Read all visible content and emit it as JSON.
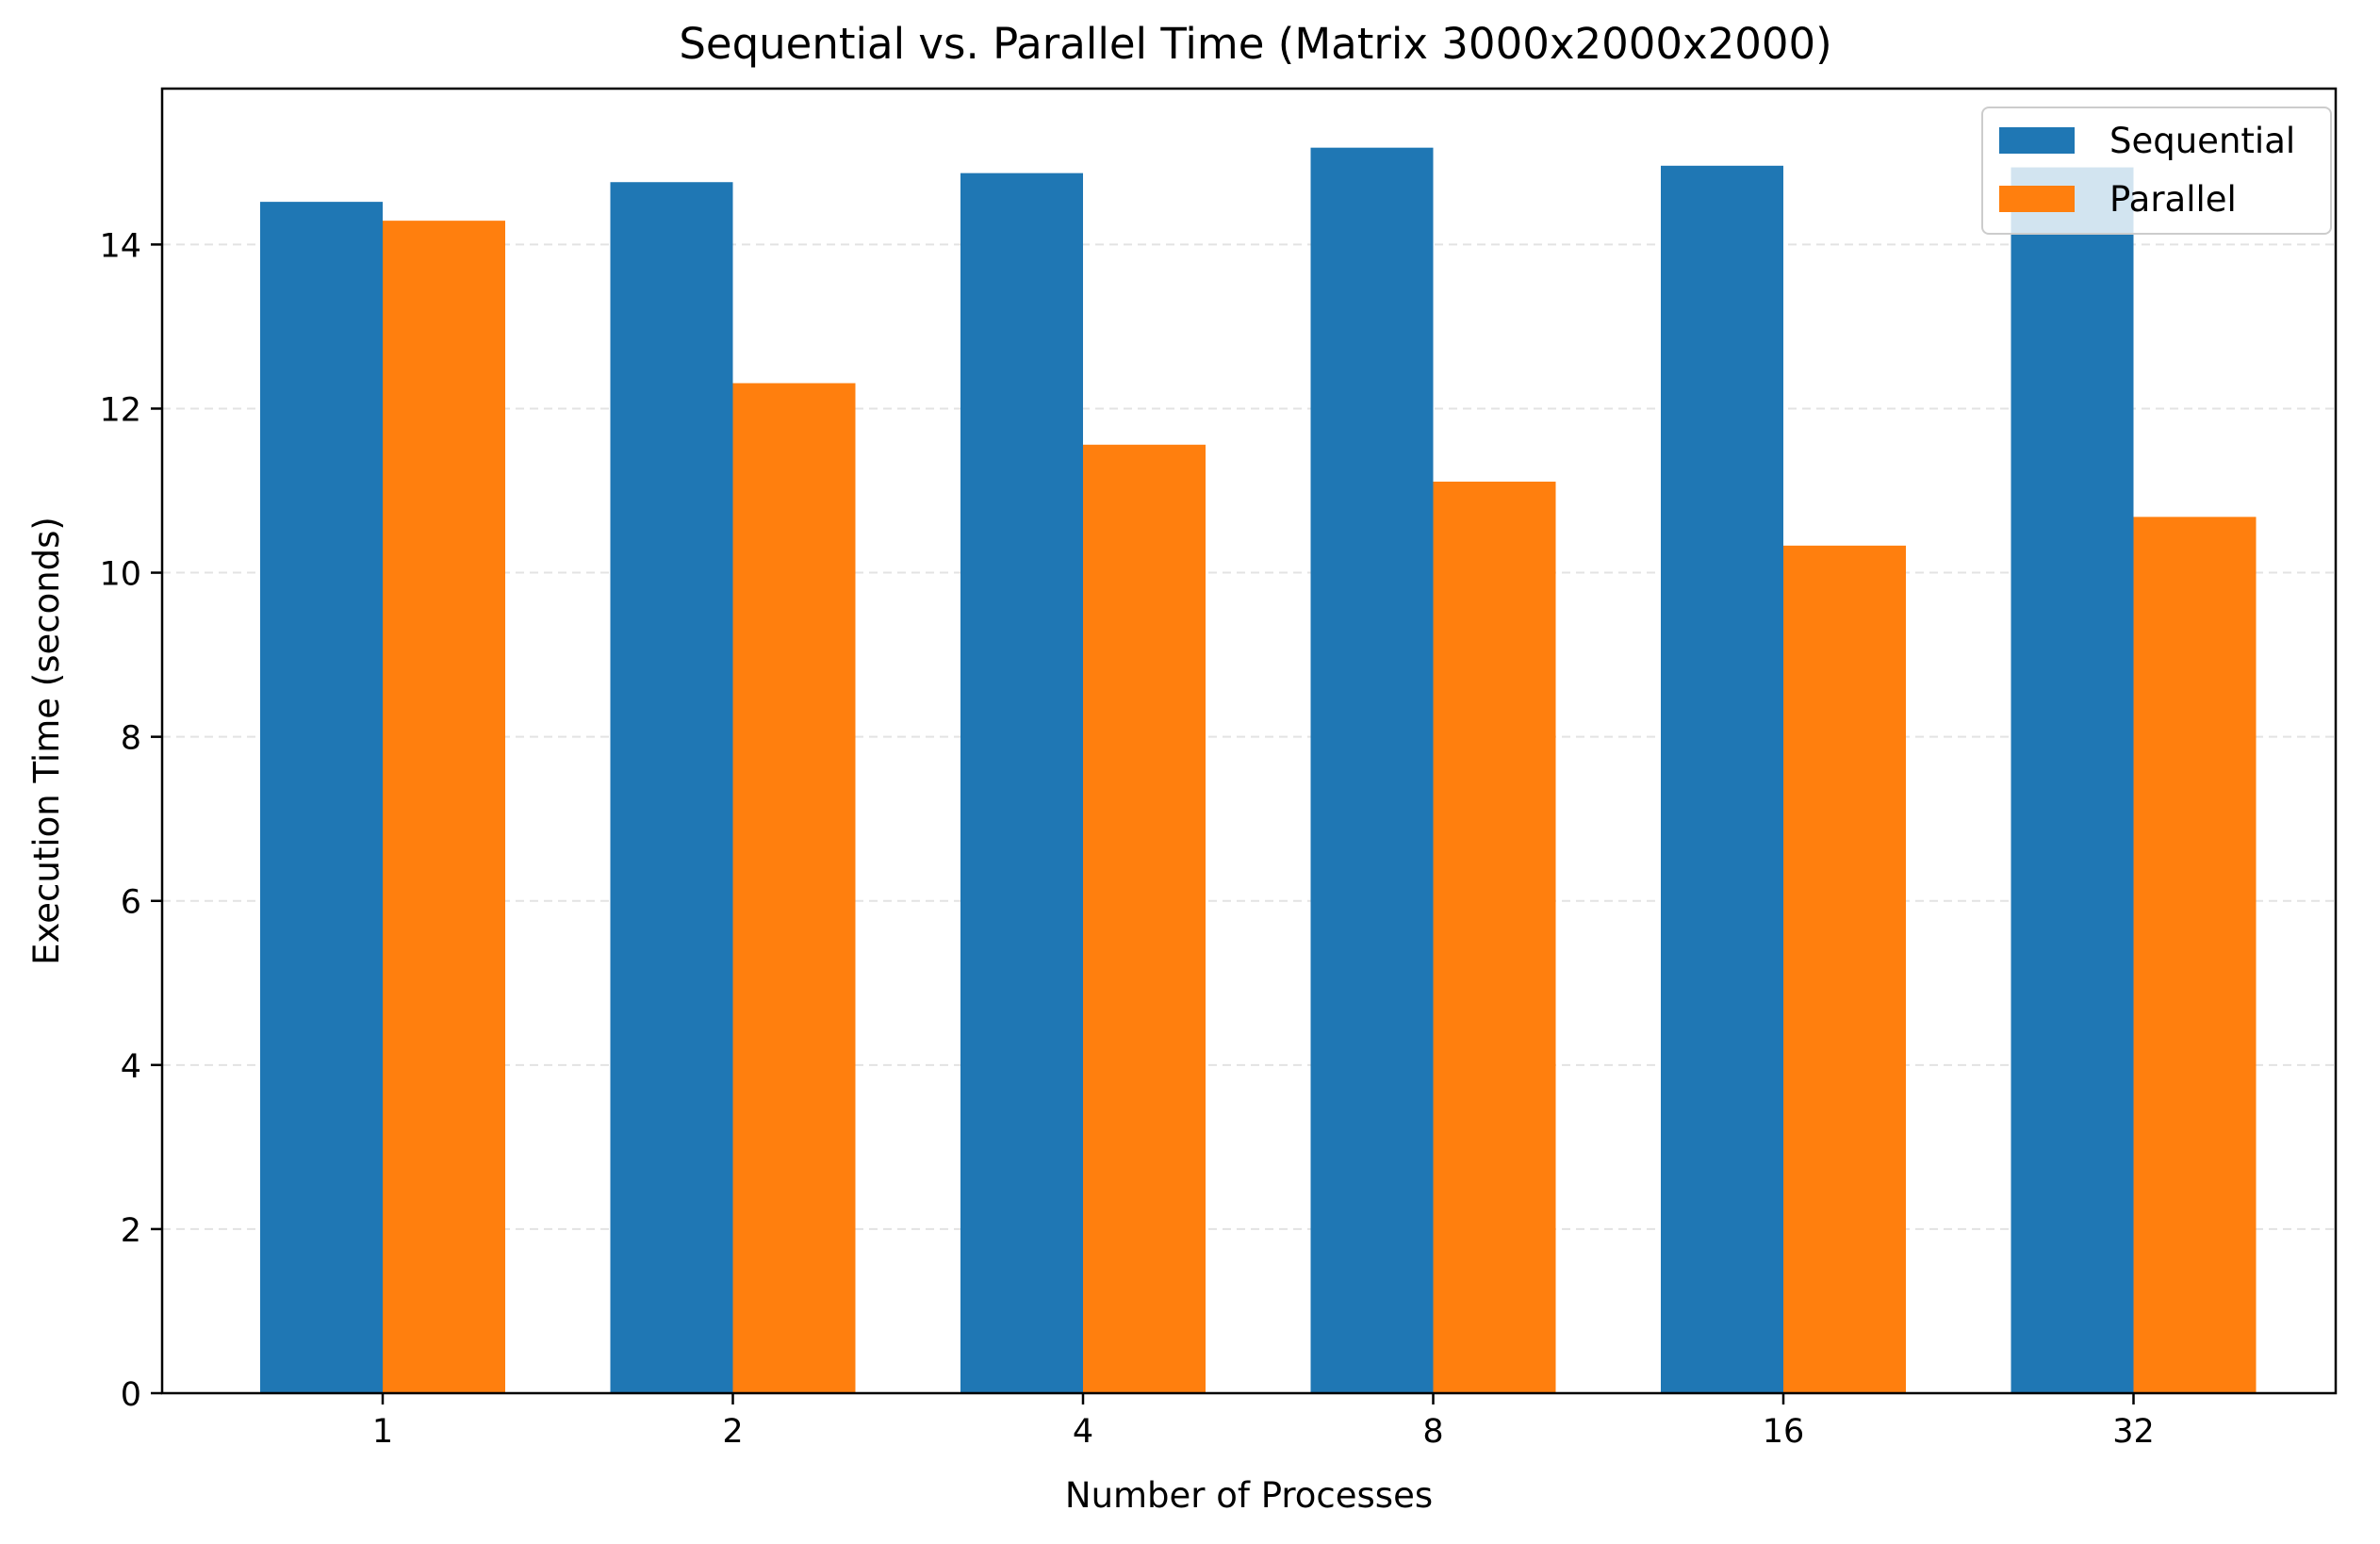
{
  "chart_data": {
    "type": "bar",
    "title": "Sequential vs. Parallel Time (Matrix 3000x2000x2000)",
    "xlabel": "Number of Processes",
    "ylabel": "Execution Time (seconds)",
    "categories": [
      "1",
      "2",
      "4",
      "8",
      "16",
      "32"
    ],
    "series": [
      {
        "name": "Sequential",
        "color": "#1f77b4",
        "values": [
          14.52,
          14.76,
          14.87,
          15.18,
          14.96,
          14.94
        ]
      },
      {
        "name": "Parallel",
        "color": "#ff7f0e",
        "values": [
          14.29,
          12.31,
          11.56,
          11.11,
          10.33,
          10.68
        ]
      }
    ],
    "ylim": [
      0,
      15.9
    ],
    "yticks": [
      0,
      2,
      4,
      6,
      8,
      10,
      12,
      14
    ],
    "grid": "y-dashed",
    "legend_position": "top-right"
  }
}
